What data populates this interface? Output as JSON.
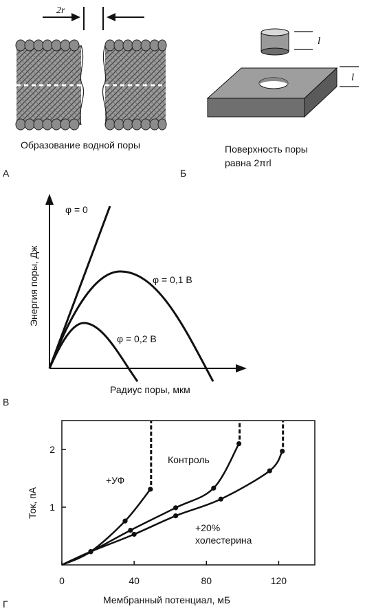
{
  "panel_a": {
    "letter": "А",
    "gap_label": "2r",
    "caption": "Образование водной поры"
  },
  "panel_b": {
    "letter": "Б",
    "cylinder_label": "l",
    "slab_label": "l",
    "caption_line1": "Поверхность поры",
    "caption_line2": "равна 2πrl"
  },
  "panel_c": {
    "letter": "В",
    "ylabel": "Энергия поры, Дж",
    "xlabel": "Радиус поры, мкм",
    "curve_labels": [
      "φ = 0",
      "φ = 0,1 В",
      "φ = 0,2 В"
    ]
  },
  "panel_d": {
    "letter": "Г",
    "chart_data": {
      "type": "line",
      "xlabel": "Мембранный потенциал, мБ",
      "ylabel": "Ток, пА",
      "xlim": [
        0,
        140
      ],
      "ylim": [
        0,
        2.5
      ],
      "x_ticks": [
        0,
        40,
        80,
        120
      ],
      "y_ticks": [
        1,
        2
      ],
      "series": [
        {
          "name": "+УФ",
          "points": [
            [
              16,
              0.23
            ],
            [
              35,
              0.76
            ],
            [
              49,
              1.31
            ]
          ]
        },
        {
          "name": "Контроль",
          "points": [
            [
              16,
              0.23
            ],
            [
              38,
              0.6
            ],
            [
              63,
              0.99
            ],
            [
              84,
              1.33
            ],
            [
              98,
              2.1
            ]
          ]
        },
        {
          "name": "+20% холестерина",
          "points": [
            [
              16,
              0.23
            ],
            [
              40,
              0.53
            ],
            [
              63,
              0.85
            ],
            [
              88,
              1.14
            ],
            [
              115,
              1.63
            ],
            [
              122,
              1.97
            ]
          ]
        }
      ],
      "series_label_lines": [
        "+УФ",
        "Контроль",
        "+20%",
        "холестерина"
      ]
    }
  }
}
